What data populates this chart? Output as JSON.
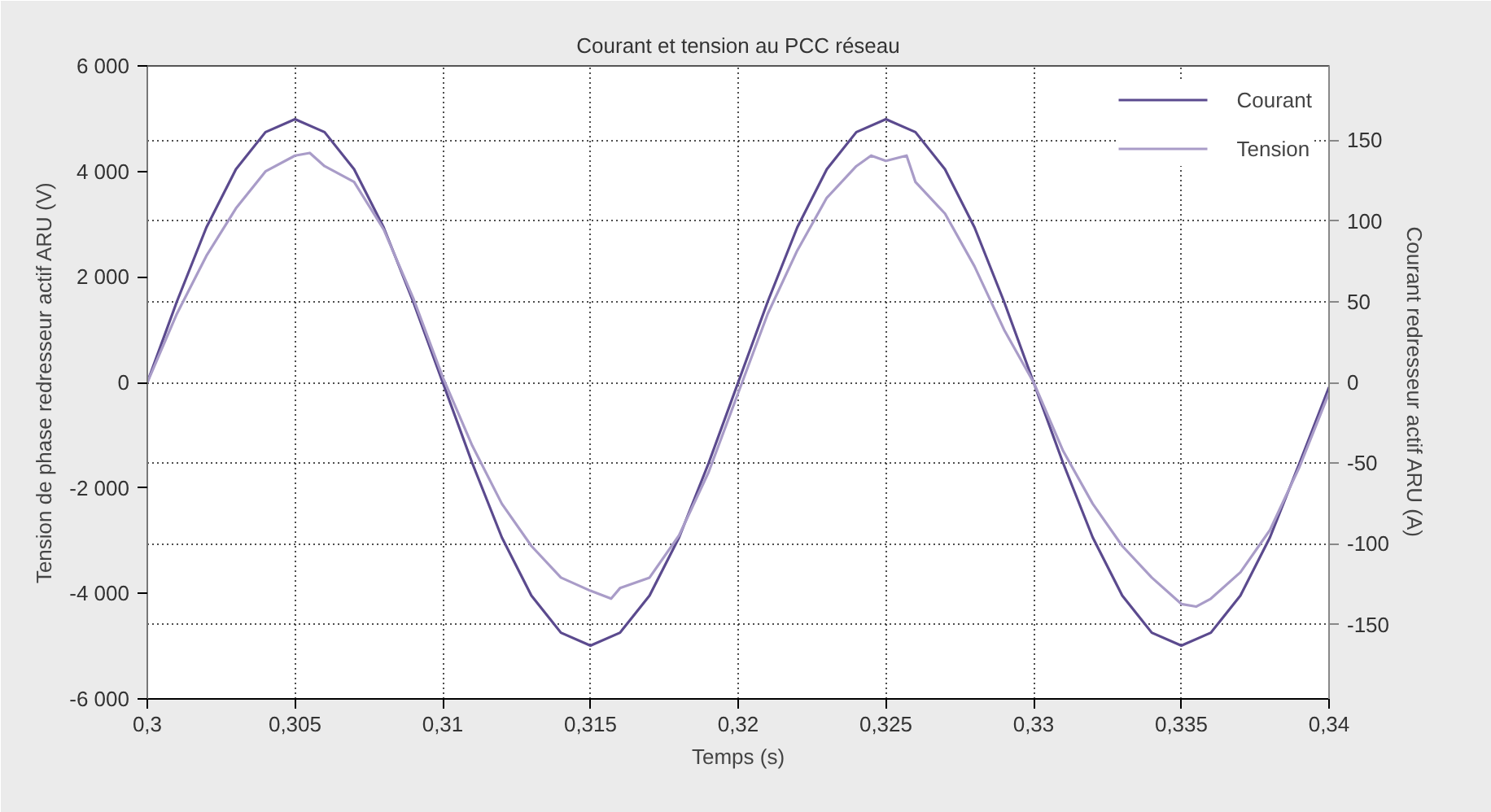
{
  "chart_data": {
    "type": "line",
    "title": "Courant et tension au PCC réseau",
    "xlabel": "Temps (s)",
    "ylabel": "Tension de phase redresseur actif ARU (V)",
    "y2label": "Courant redresseur actif ARU (A)",
    "xlim": [
      0.3,
      0.34
    ],
    "xticks": [
      {
        "value": 0.3,
        "label": "0,3"
      },
      {
        "value": 0.305,
        "label": "0,305"
      },
      {
        "value": 0.31,
        "label": "0,31"
      },
      {
        "value": 0.315,
        "label": "0,315"
      },
      {
        "value": 0.32,
        "label": "0,32"
      },
      {
        "value": 0.325,
        "label": "0,325"
      },
      {
        "value": 0.33,
        "label": "0,33"
      },
      {
        "value": 0.335,
        "label": "0,335"
      },
      {
        "value": 0.34,
        "label": "0,34"
      }
    ],
    "ylim": [
      -6000,
      6000
    ],
    "yticks": [
      {
        "value": -6000,
        "label": "-6 000"
      },
      {
        "value": -4000,
        "label": "-4 000"
      },
      {
        "value": -2000,
        "label": "-2 000"
      },
      0,
      {
        "value": 2000,
        "label": "2 000"
      },
      {
        "value": 4000,
        "label": "4 000"
      },
      {
        "value": 6000,
        "label": "6 000"
      }
    ],
    "y2lim": [
      -196,
      196
    ],
    "y2ticks": [
      -150,
      -100,
      -50,
      0,
      50,
      100,
      150
    ],
    "grid": true,
    "legend": "top right",
    "series": [
      {
        "name": "Courant",
        "color": "#5b4a8e",
        "axis": "y2",
        "x": [
          0.3,
          0.301,
          0.302,
          0.303,
          0.304,
          0.305,
          0.306,
          0.307,
          0.308,
          0.309,
          0.31,
          0.311,
          0.312,
          0.313,
          0.314,
          0.315,
          0.316,
          0.317,
          0.318,
          0.319,
          0.32,
          0.321,
          0.322,
          0.323,
          0.324,
          0.325,
          0.326,
          0.327,
          0.328,
          0.329,
          0.33,
          0.331,
          0.332,
          0.333,
          0.334,
          0.335,
          0.336,
          0.337,
          0.338,
          0.339,
          0.34
        ],
        "values": [
          0,
          50,
          96,
          132,
          155,
          163,
          155,
          132,
          96,
          50,
          0,
          -50,
          -96,
          -132,
          -155,
          -163,
          -155,
          -132,
          -96,
          -50,
          0,
          50,
          96,
          132,
          155,
          163,
          155,
          132,
          96,
          50,
          0,
          -50,
          -96,
          -132,
          -155,
          -163,
          -155,
          -132,
          -96,
          -50,
          -3
        ]
      },
      {
        "name": "Tension",
        "color": "#a99cc8",
        "x": [
          0.3,
          0.301,
          0.302,
          0.303,
          0.304,
          0.305,
          0.3055,
          0.306,
          0.307,
          0.308,
          0.309,
          0.31,
          0.311,
          0.312,
          0.313,
          0.314,
          0.315,
          0.3157,
          0.316,
          0.317,
          0.318,
          0.319,
          0.32,
          0.321,
          0.322,
          0.323,
          0.324,
          0.3245,
          0.325,
          0.3257,
          0.326,
          0.327,
          0.328,
          0.329,
          0.33,
          0.331,
          0.332,
          0.333,
          0.334,
          0.335,
          0.3355,
          0.336,
          0.337,
          0.338,
          0.339,
          0.34
        ],
        "values": [
          0,
          1300,
          2400,
          3300,
          4000,
          4300,
          4350,
          4100,
          3800,
          2900,
          1600,
          100,
          -1200,
          -2300,
          -3100,
          -3700,
          -3950,
          -4100,
          -3900,
          -3700,
          -2900,
          -1700,
          -200,
          1300,
          2500,
          3500,
          4100,
          4300,
          4200,
          4300,
          3800,
          3200,
          2200,
          1000,
          0,
          -1300,
          -2300,
          -3100,
          -3700,
          -4200,
          -4250,
          -4100,
          -3600,
          -2800,
          -1600,
          -200
        ]
      }
    ]
  }
}
